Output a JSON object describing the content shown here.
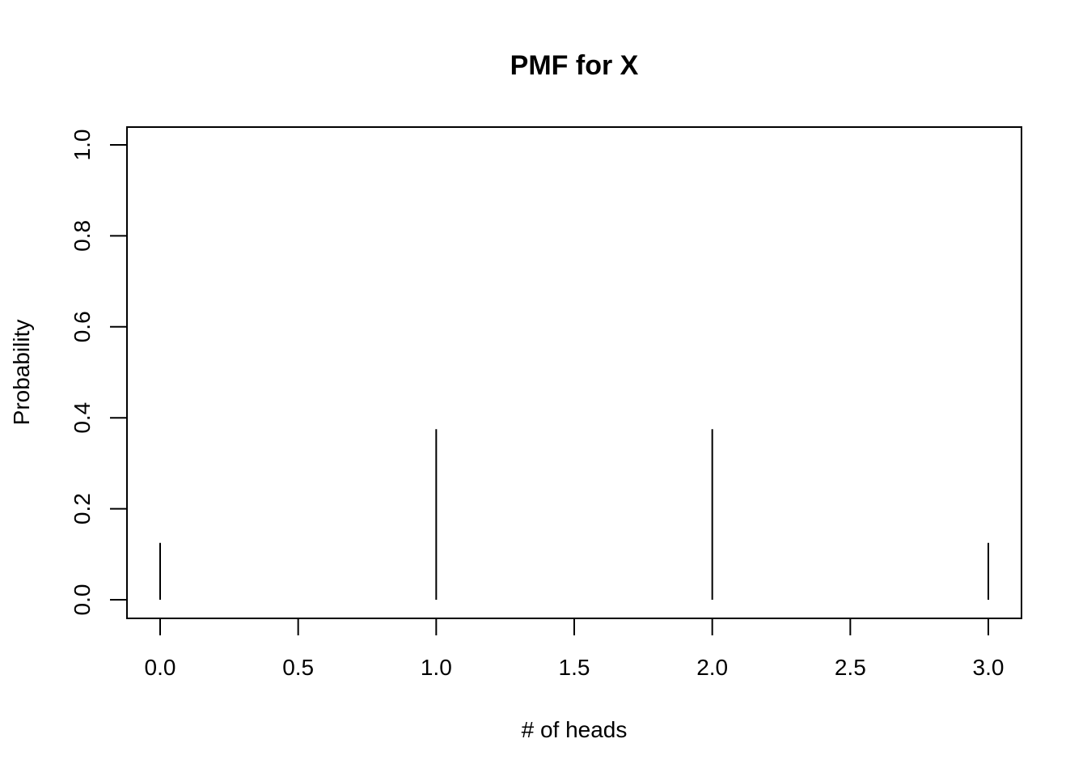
{
  "chart_data": {
    "type": "bar",
    "style": "spike",
    "title": "PMF for X",
    "xlabel": "# of heads",
    "ylabel": "Probability",
    "x": [
      0,
      1,
      2,
      3
    ],
    "y": [
      0.125,
      0.375,
      0.375,
      0.125
    ],
    "xlim": [
      0,
      3
    ],
    "ylim": [
      0,
      1
    ],
    "xticks": [
      {
        "value": 0.0,
        "label": "0.0"
      },
      {
        "value": 0.5,
        "label": "0.5"
      },
      {
        "value": 1.0,
        "label": "1.0"
      },
      {
        "value": 1.5,
        "label": "1.5"
      },
      {
        "value": 2.0,
        "label": "2.0"
      },
      {
        "value": 2.5,
        "label": "2.5"
      },
      {
        "value": 3.0,
        "label": "3.0"
      }
    ],
    "yticks": [
      {
        "value": 0.0,
        "label": "0.0"
      },
      {
        "value": 0.2,
        "label": "0.2"
      },
      {
        "value": 0.4,
        "label": "0.4"
      },
      {
        "value": 0.6,
        "label": "0.6"
      },
      {
        "value": 0.8,
        "label": "0.8"
      },
      {
        "value": 1.0,
        "label": "1.0"
      }
    ],
    "color": "#000000",
    "grid": false,
    "legend": "none"
  }
}
